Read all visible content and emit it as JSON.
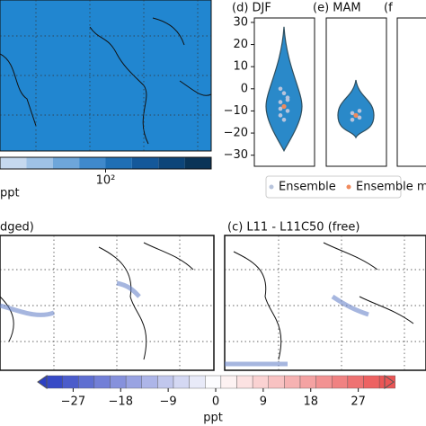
{
  "top_map": {
    "colorbar": {
      "log": true,
      "lim": [
        20,
        500
      ],
      "ticks": [
        {
          "value": 100,
          "label": "10²"
        }
      ],
      "colors": [
        "#c6d9ef",
        "#9fc2e6",
        "#6ea6da",
        "#3f89cc",
        "#1f6fb5",
        "#14589a",
        "#0d4579",
        "#0a3457"
      ],
      "unit": "ppt"
    },
    "color": "#2186d0"
  },
  "violins": {
    "ylim": [
      -35,
      32
    ],
    "yticks": [
      30,
      20,
      10,
      {
        "value": 0,
        "label": "0"
      },
      {
        "value": -10,
        "label": "−10"
      },
      {
        "value": -20,
        "label": "−20"
      },
      {
        "value": -30,
        "label": "−30"
      }
    ],
    "panels": [
      {
        "title": "(d) DJF",
        "min": -28,
        "max": 28,
        "median": -8,
        "ensemble": [
          0,
          -2,
          -4,
          -6,
          -8,
          -10,
          -12,
          -14,
          -5,
          -9
        ],
        "mean": -8
      },
      {
        "title": "(e) MAM",
        "min": -22,
        "max": 4,
        "median": -12,
        "ensemble": [
          -11,
          -12,
          -13,
          -14,
          -12,
          -10
        ],
        "mean": -12
      },
      {
        "title": "(f"
      }
    ],
    "color": "#2a89c9",
    "legend": [
      "Ensemble",
      "Ensemble me"
    ],
    "legend_colors": [
      "#b8c4dc",
      "#f08a5d"
    ]
  },
  "bottom_left": {
    "title": "dged)"
  },
  "bottom_right": {
    "title": "(c) L11 - L11C50 (free)"
  },
  "bottom_colorbar": {
    "lim": [
      -32,
      32
    ],
    "step": 3,
    "ticks": [
      {
        "value": -27,
        "label": "−27"
      },
      {
        "value": -18,
        "label": "−18"
      },
      {
        "value": -9,
        "label": "−9"
      },
      0,
      9,
      18,
      27
    ],
    "unit": "ppt"
  }
}
